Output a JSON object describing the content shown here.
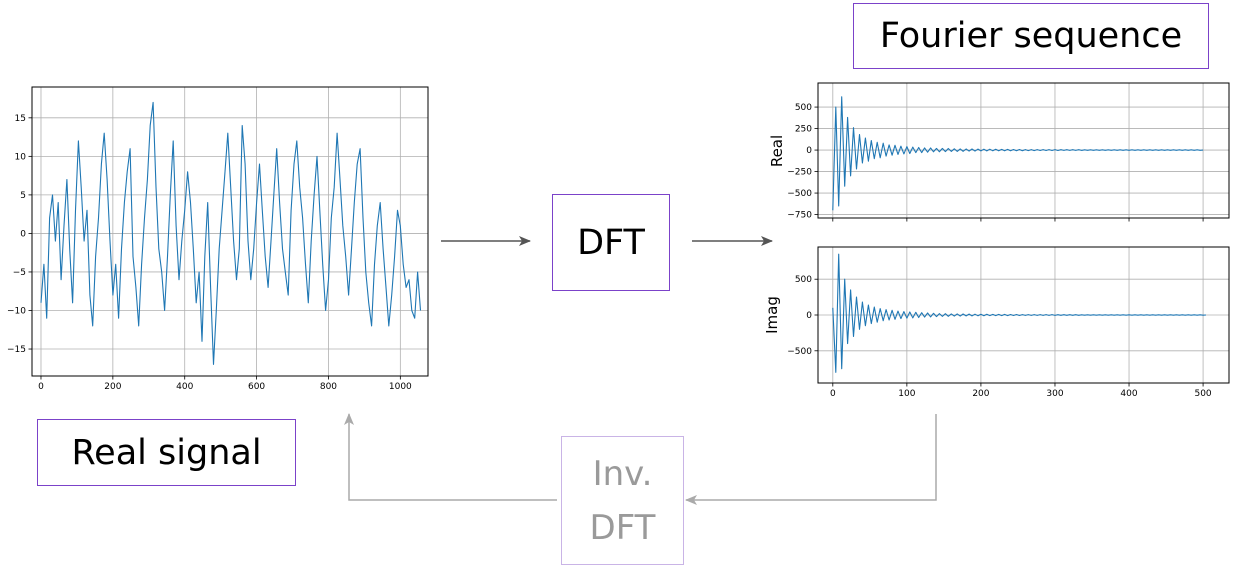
{
  "boxes": {
    "fourier_title": "Fourier sequence",
    "dft": "DFT",
    "real_signal": "Real signal",
    "inverse_dft_line1": "Inv.",
    "inverse_dft_line2": "DFT"
  },
  "colors": {
    "box_border": "#7b42c9",
    "box_border_faded": "#c9b4e6",
    "faded_text": "#9a9a9a",
    "arrow": "#555555",
    "arrow_faded": "#aaaaaa",
    "series": "#1f77b4",
    "grid": "#b0b0b0"
  },
  "chart_data": [
    {
      "type": "line",
      "title": "",
      "xlabel": "",
      "ylabel": "",
      "xlim": [
        -25,
        1077
      ],
      "ylim": [
        -18.5,
        19
      ],
      "xticks": [
        0,
        200,
        400,
        600,
        800,
        1000
      ],
      "yticks": [
        -15,
        -10,
        -5,
        0,
        5,
        10,
        15
      ],
      "grid": true,
      "series": [
        {
          "x_start": 0,
          "x_step": 8,
          "y": [
            -9,
            -4,
            -11,
            2,
            5,
            -1,
            4,
            -6,
            1,
            7,
            -2,
            -9,
            3,
            12,
            6,
            -1,
            3,
            -8,
            -12,
            -3,
            2,
            9,
            13,
            7,
            -1,
            -8,
            -4,
            -11,
            -2,
            4,
            8,
            11,
            -3,
            -7,
            -12,
            -4,
            2,
            7,
            14,
            17,
            6,
            -2,
            -5,
            -10,
            -3,
            5,
            12,
            1,
            -6,
            -1,
            3,
            8,
            4,
            -2,
            -9,
            -5,
            -14,
            -3,
            4,
            -7,
            -17,
            -10,
            -2,
            3,
            8,
            13,
            6,
            -1,
            -6,
            -2,
            14,
            9,
            -1,
            -6,
            -2,
            4,
            9,
            3,
            -3,
            -7,
            -1,
            5,
            11,
            4,
            -2,
            -5,
            -8,
            3,
            9,
            12,
            6,
            2,
            -4,
            -9,
            -1,
            5,
            10,
            3,
            -4,
            -10,
            -6,
            2,
            6,
            13,
            7,
            1,
            -3,
            -8,
            -2,
            4,
            9,
            11,
            2,
            -5,
            -9,
            -12,
            -4,
            1,
            4,
            -2,
            -7,
            -12,
            -8,
            -3,
            3,
            1,
            -4,
            -7,
            -6,
            -10,
            -11,
            -5,
            -10
          ]
        }
      ]
    },
    {
      "type": "line",
      "title": "",
      "xlabel": "",
      "ylabel": "Real",
      "xlim": [
        -20,
        535
      ],
      "ylim": [
        -790,
        780
      ],
      "xticks": [
        0,
        100,
        200,
        300,
        400,
        500
      ],
      "yticks": [
        -750,
        -500,
        -250,
        0,
        250,
        500
      ],
      "grid": true,
      "series": [
        {
          "x_start": 0,
          "x_step": 4,
          "y": [
            -700,
            500,
            -650,
            620,
            -420,
            380,
            -300,
            260,
            -220,
            180,
            -150,
            140,
            -130,
            110,
            -100,
            90,
            -90,
            80,
            -70,
            60,
            -60,
            55,
            -50,
            45,
            -45,
            40,
            -40,
            35,
            -30,
            30,
            -30,
            25,
            -25,
            25,
            -20,
            20,
            -20,
            20,
            -18,
            18,
            -15,
            15,
            -15,
            14,
            -14,
            13,
            -12,
            12,
            -12,
            11,
            -10,
            10,
            -10,
            10,
            -9,
            9,
            -9,
            8,
            -8,
            8,
            -8,
            7,
            -7,
            7,
            -7,
            6,
            -6,
            6,
            -6,
            6,
            -5,
            5,
            -5,
            5,
            -5,
            5,
            -5,
            4,
            -4,
            4,
            -4,
            4,
            -4,
            4,
            -4,
            3,
            -3,
            3,
            -3,
            3,
            -3,
            3,
            -3,
            3,
            -3,
            3,
            -3,
            3,
            -3,
            3,
            -3,
            3,
            -3,
            3,
            -3,
            3,
            -3,
            3,
            -3,
            3,
            -3,
            3,
            -3,
            3,
            -3,
            3,
            -3,
            3,
            -3,
            3,
            -3,
            3,
            -3,
            3,
            -3,
            0
          ]
        }
      ]
    },
    {
      "type": "line",
      "title": "",
      "xlabel": "",
      "ylabel": "Imag",
      "xlim": [
        -20,
        535
      ],
      "ylim": [
        -950,
        950
      ],
      "xticks": [
        0,
        100,
        200,
        300,
        400,
        500
      ],
      "yticks": [
        -500,
        0,
        500
      ],
      "grid": true,
      "series": [
        {
          "x_start": 0,
          "x_step": 4,
          "y": [
            100,
            -800,
            850,
            -750,
            500,
            -400,
            350,
            -300,
            250,
            -200,
            180,
            -150,
            140,
            -120,
            110,
            -100,
            90,
            -80,
            75,
            -70,
            65,
            -60,
            55,
            -50,
            48,
            -45,
            42,
            -40,
            38,
            -35,
            32,
            -30,
            28,
            -26,
            24,
            -22,
            20,
            -20,
            18,
            -18,
            16,
            -16,
            15,
            -15,
            14,
            -13,
            12,
            -12,
            11,
            -11,
            10,
            -10,
            10,
            -9,
            9,
            -9,
            8,
            -8,
            8,
            -8,
            7,
            -7,
            7,
            -7,
            6,
            -6,
            6,
            -6,
            6,
            -5,
            5,
            -5,
            5,
            -5,
            5,
            -5,
            4,
            -4,
            4,
            -4,
            4,
            -4,
            4,
            -4,
            3,
            -3,
            3,
            -3,
            3,
            -3,
            3,
            -3,
            3,
            -3,
            3,
            -3,
            3,
            -3,
            3,
            -3,
            3,
            -3,
            3,
            -3,
            3,
            -3,
            3,
            -3,
            3,
            -3,
            3,
            -3,
            3,
            -3,
            3,
            -3,
            3,
            -3,
            3,
            -3,
            3,
            -3,
            3,
            -3,
            3,
            -3,
            0
          ]
        }
      ]
    }
  ]
}
